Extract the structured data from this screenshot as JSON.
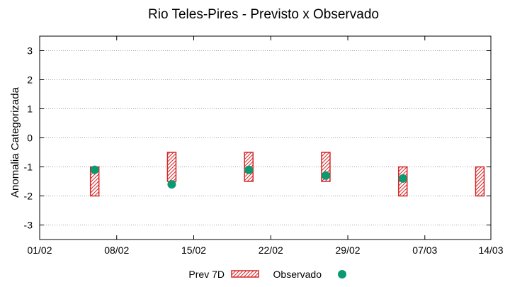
{
  "chart_data": {
    "type": "scatter",
    "title": "Rio Teles-Pires - Previsto x Observado",
    "xlabel": "",
    "ylabel": "Anomalia Categorizada",
    "ylim": [
      -3.5,
      3.5
    ],
    "yticks": [
      -3,
      -2,
      -1,
      0,
      1,
      2,
      3
    ],
    "ytick_labels": [
      "-3",
      "-2",
      "-1",
      "0",
      "1",
      "2",
      "3"
    ],
    "xlim_days": [
      0,
      41
    ],
    "xticks_days": [
      0,
      7,
      14,
      21,
      28,
      35,
      41
    ],
    "xtick_labels": [
      "01/02",
      "08/02",
      "15/02",
      "22/02",
      "29/02",
      "07/03",
      "14/03"
    ],
    "grid": true,
    "legend": {
      "position": "bottom",
      "entries": [
        "Prev 7D",
        "Observado"
      ]
    },
    "series": [
      {
        "name": "Prev 7D",
        "kind": "range",
        "x_days": [
          5,
          12,
          19,
          26,
          33,
          40
        ],
        "low": [
          -2,
          -1.5,
          -1.5,
          -1.5,
          -2,
          -2
        ],
        "high": [
          -1,
          -0.5,
          -0.5,
          -0.5,
          -1,
          -1
        ],
        "color": "#d62728"
      },
      {
        "name": "Observado",
        "kind": "point",
        "x_days": [
          5,
          12,
          19,
          26,
          33
        ],
        "values": [
          -1.1,
          -1.6,
          -1.1,
          -1.3,
          -1.4
        ],
        "color": "#0a9970"
      }
    ]
  }
}
